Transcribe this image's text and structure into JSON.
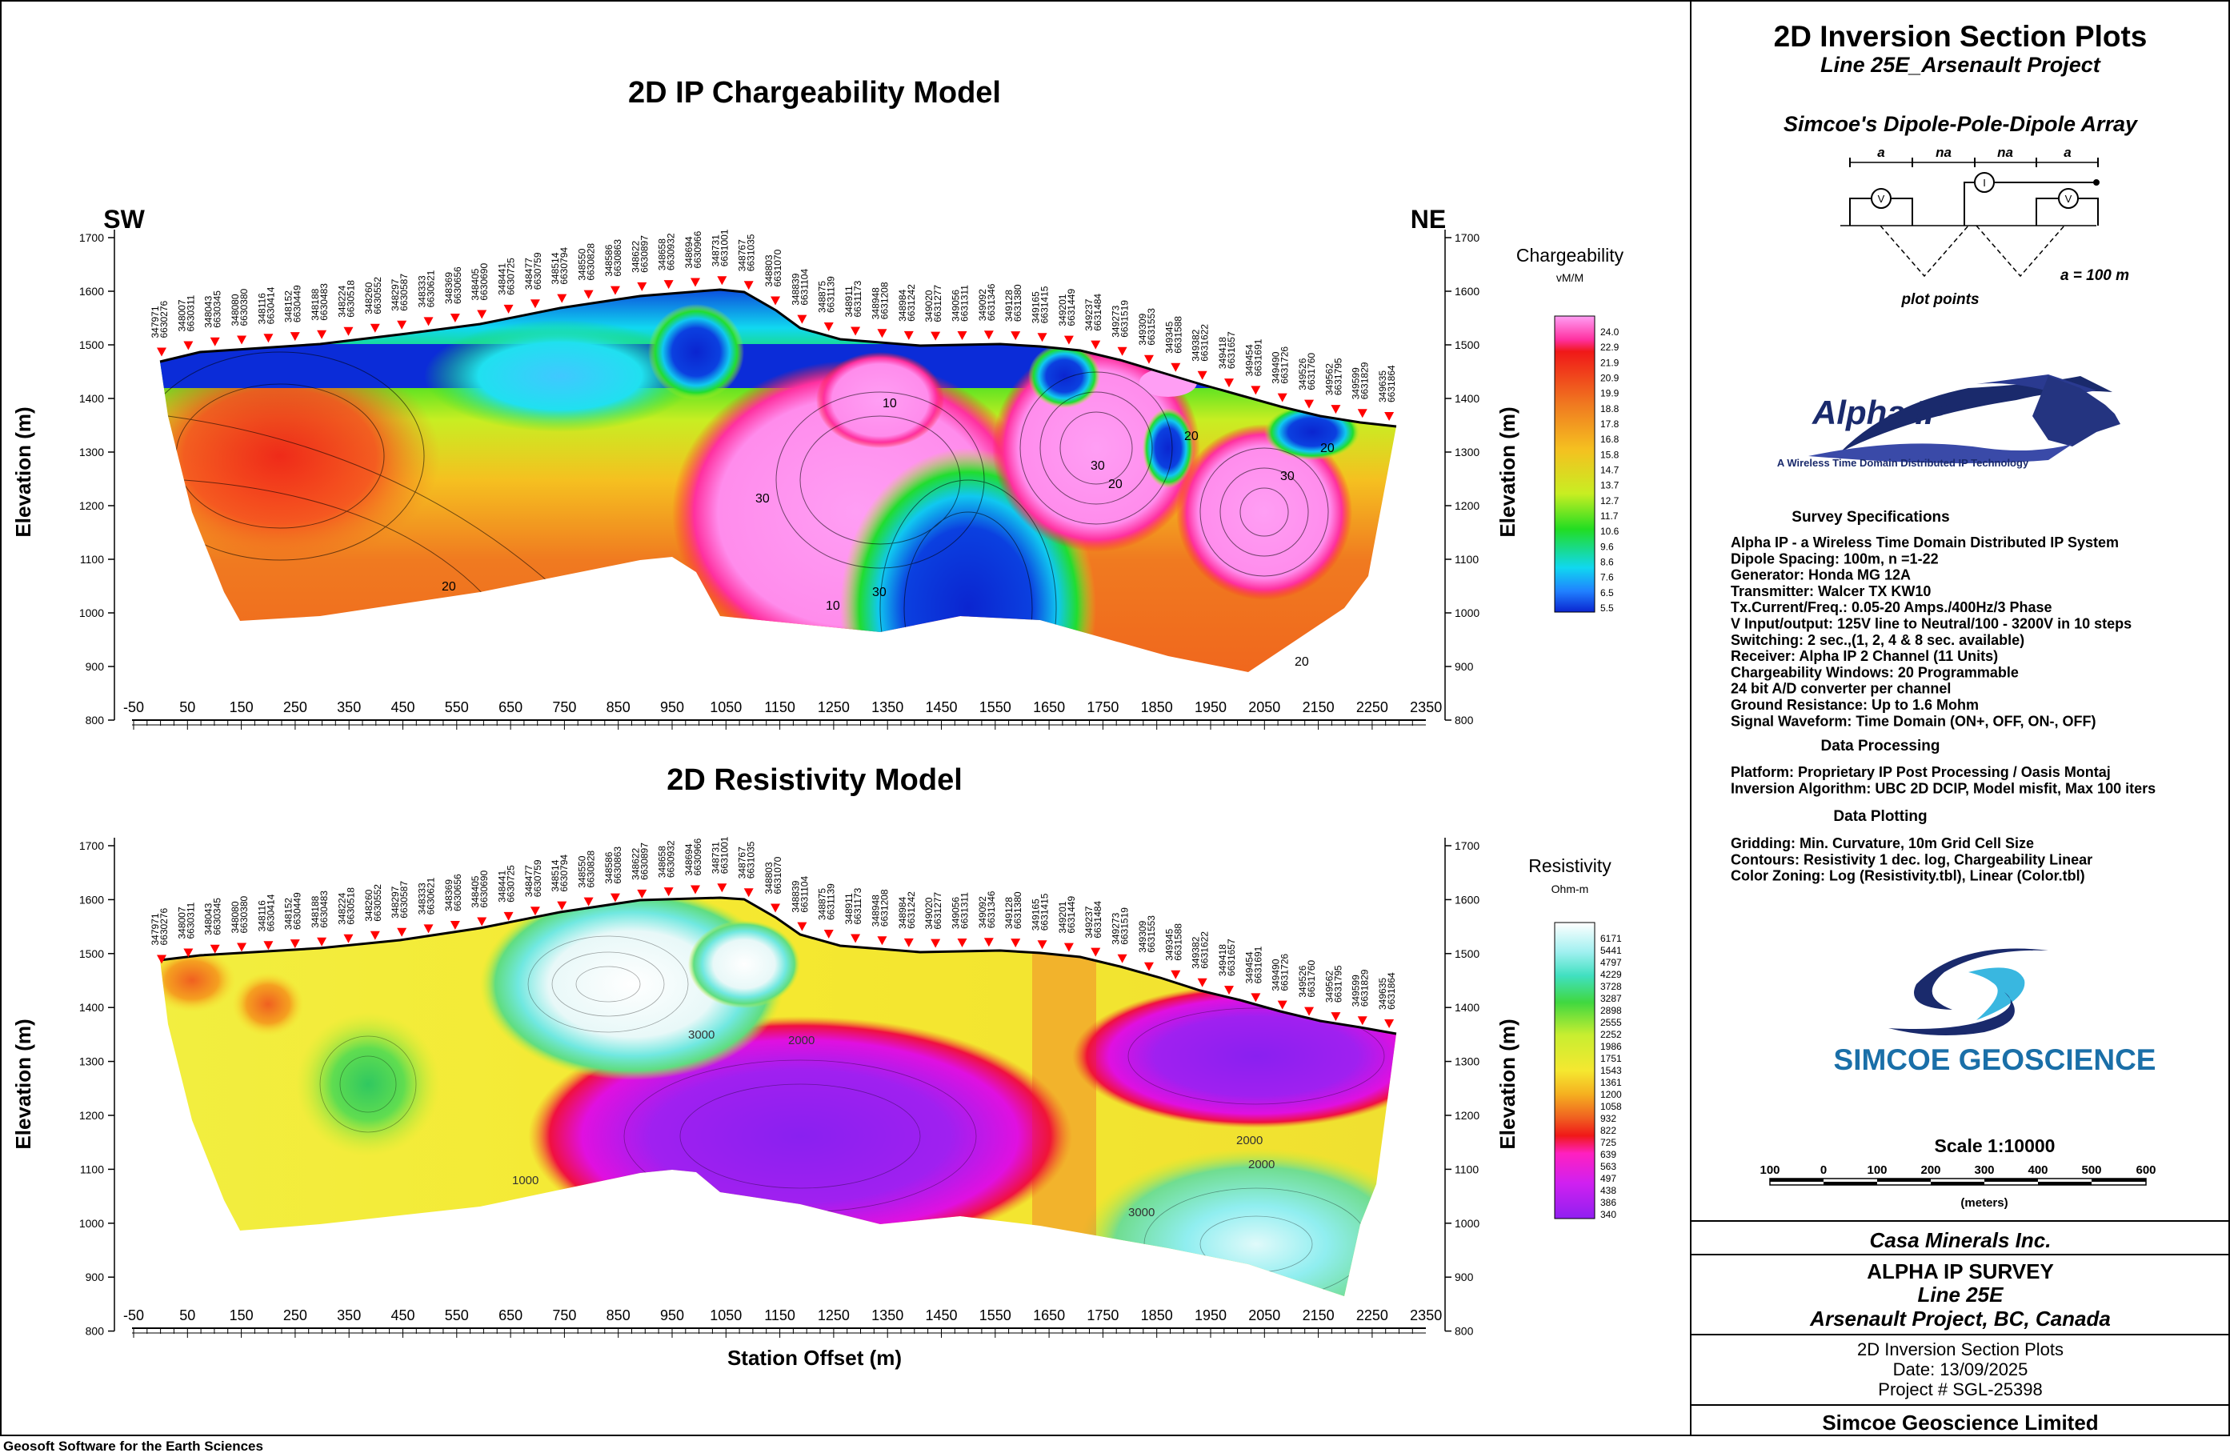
{
  "chargeability_section": {
    "title": "2D IP Chargeability Model",
    "dir_left": "SW",
    "dir_right": "NE",
    "ylabel": "Elevation (m)",
    "legend_title": "Chargeability",
    "legend_unit": "vM/M",
    "legend_values": [
      "24.0",
      "22.9",
      "21.9",
      "20.9",
      "19.9",
      "18.8",
      "17.8",
      "16.8",
      "15.8",
      "14.7",
      "13.7",
      "12.7",
      "11.7",
      "10.6",
      "9.6",
      "8.6",
      "7.6",
      "6.5",
      "5.5"
    ],
    "contour_labels": [
      "10",
      "20",
      "30",
      "10",
      "20",
      "30",
      "20",
      "30",
      "20",
      "20",
      "30"
    ]
  },
  "resistivity_section": {
    "title": "2D Resistivity Model",
    "ylabel": "Elevation (m)",
    "xlabel": "Station Offset (m)",
    "legend_title": "Resistivity",
    "legend_unit": "Ohm-m",
    "legend_values": [
      "6171",
      "5441",
      "4797",
      "4229",
      "3728",
      "3287",
      "2898",
      "2555",
      "2252",
      "1986",
      "1751",
      "1543",
      "1361",
      "1200",
      "1058",
      "932",
      "822",
      "725",
      "639",
      "563",
      "497",
      "438",
      "386",
      "340"
    ],
    "contour_labels": [
      "3000",
      "2000",
      "1000",
      "2000",
      "2000",
      "3000"
    ]
  },
  "axes": {
    "x_ticks": [
      "-50",
      "50",
      "150",
      "250",
      "350",
      "450",
      "550",
      "650",
      "750",
      "850",
      "950",
      "1050",
      "1150",
      "1250",
      "1350",
      "1450",
      "1550",
      "1650",
      "1750",
      "1850",
      "1950",
      "2050",
      "2150",
      "2250",
      "2350"
    ],
    "y_ticks": [
      "1700",
      "1600",
      "1500",
      "1400",
      "1300",
      "1200",
      "1100",
      "1000",
      "900",
      "800"
    ]
  },
  "stations": [
    [
      "347971",
      "6630276"
    ],
    [
      "348007",
      "6630311"
    ],
    [
      "348043",
      "6630345"
    ],
    [
      "348080",
      "6630380"
    ],
    [
      "348116",
      "6630414"
    ],
    [
      "348152",
      "6630449"
    ],
    [
      "348188",
      "6630483"
    ],
    [
      "348224",
      "6630518"
    ],
    [
      "348260",
      "6630552"
    ],
    [
      "348297",
      "6630587"
    ],
    [
      "348333",
      "6630621"
    ],
    [
      "348369",
      "6630656"
    ],
    [
      "348405",
      "6630690"
    ],
    [
      "348441",
      "6630725"
    ],
    [
      "348477",
      "6630759"
    ],
    [
      "348514",
      "6630794"
    ],
    [
      "348550",
      "6630828"
    ],
    [
      "348586",
      "6630863"
    ],
    [
      "348622",
      "6630897"
    ],
    [
      "348658",
      "6630932"
    ],
    [
      "348694",
      "6630966"
    ],
    [
      "348731",
      "6631001"
    ],
    [
      "348767",
      "6631035"
    ],
    [
      "348803",
      "6631070"
    ],
    [
      "348839",
      "6631104"
    ],
    [
      "348875",
      "6631139"
    ],
    [
      "348911",
      "6631173"
    ],
    [
      "348948",
      "6631208"
    ],
    [
      "348984",
      "6631242"
    ],
    [
      "349020",
      "6631277"
    ],
    [
      "349056",
      "6631311"
    ],
    [
      "349092",
      "6631346"
    ],
    [
      "349128",
      "6631380"
    ],
    [
      "349165",
      "6631415"
    ],
    [
      "349201",
      "6631449"
    ],
    [
      "349237",
      "6631484"
    ],
    [
      "349273",
      "6631519"
    ],
    [
      "349309",
      "6631553"
    ],
    [
      "349345",
      "6631588"
    ],
    [
      "349382",
      "6631622"
    ],
    [
      "349418",
      "6631657"
    ],
    [
      "349454",
      "6631691"
    ],
    [
      "349490",
      "6631726"
    ],
    [
      "349526",
      "6631760"
    ],
    [
      "349562",
      "6631795"
    ],
    [
      "349599",
      "6631829"
    ],
    [
      "349635",
      "6631864"
    ]
  ],
  "title_block": {
    "main_title": "2D Inversion Section Plots",
    "subtitle": "Line 25E_Arsenault Project",
    "array_title": "Simcoe's Dipole-Pole-Dipole Array",
    "array_labels": [
      "a",
      "na",
      "na",
      "a"
    ],
    "array_note": "a = 100 m",
    "plot_points": "plot points",
    "logo_text": "Alpha IP",
    "logo_tagline": "A Wireless Time Domain Distributed IP Technology",
    "survey_spec_head": "Survey Specifications",
    "survey_specs": [
      "Alpha IP - a Wireless  Time Domain Distributed IP System",
      "Dipole Spacing: 100m, n =1-22",
      "Generator: Honda MG 12A",
      "Transmitter: Walcer TX KW10",
      "Tx.Current/Freq.: 0.05-20 Amps./400Hz/3 Phase",
      "V Input/output: 125V line to Neutral/100 - 3200V in 10 steps",
      "Switching: 2 sec.,(1, 2, 4 & 8 sec. available)",
      "Receiver: Alpha IP 2 Channel (11 Units)",
      "Chargeability Windows: 20 Programmable",
      "24 bit A/D converter per channel",
      "Ground Resistance: Up to 1.6 Mohm",
      "Signal Waveform: Time Domain (ON+, OFF, ON-, OFF)"
    ],
    "processing_head": "Data Processing",
    "processing": [
      "Platform: Proprietary IP Post Processing / Oasis Montaj",
      "Inversion Algorithm: UBC 2D DCIP, Model misfit, Max 100 iters"
    ],
    "plotting_head": "Data Plotting",
    "plotting": [
      "Gridding: Min. Curvature, 10m Grid Cell Size",
      "Contours: Resistivity 1 dec. log, Chargeability Linear",
      "Color Zoning: Log (Resistivity.tbl), Linear (Color.tbl)"
    ],
    "company_logo": "SIMCOE GEOSCIENCE",
    "scale": "Scale 1:10000",
    "scale_ticks": [
      "100",
      "0",
      "100",
      "200",
      "300",
      "400",
      "500",
      "600"
    ],
    "scale_unit": "(meters)",
    "client": "Casa Minerals Inc.",
    "survey": "ALPHA IP SURVEY",
    "line": "Line 25E",
    "project_loc": "Arsenault Project, BC, Canada",
    "plot_type": "2D Inversion Section Plots",
    "date": "Date: 13/09/2025",
    "project_no": "Project # SGL-25398",
    "company": "Simcoe Geoscience Limited"
  },
  "footer": "Geosoft Software for the Earth Sciences"
}
